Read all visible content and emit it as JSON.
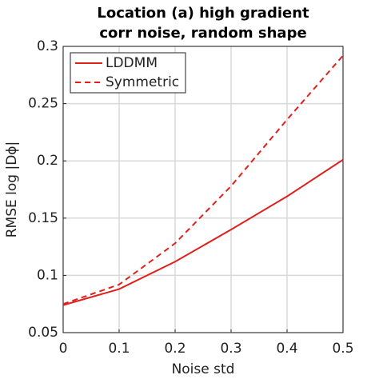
{
  "chart_data": {
    "type": "line",
    "title": [
      "Location (a) high gradient",
      "corr noise, random shape"
    ],
    "x_label": "Noise std",
    "y_label": "RMSE log |Dϕ|",
    "x": [
      0,
      0.1,
      0.2,
      0.3,
      0.4,
      0.5
    ],
    "series": [
      {
        "name": "LDDMM",
        "color": "#e0201b",
        "linestyle": "solid",
        "values": [
          0.074,
          0.088,
          0.112,
          0.14,
          0.169,
          0.201
        ]
      },
      {
        "name": "Symmetric",
        "color": "#e0201b",
        "linestyle": "dashed",
        "values": [
          0.075,
          0.092,
          0.128,
          0.178,
          0.236,
          0.292
        ]
      }
    ],
    "xlim": [
      0,
      0.5
    ],
    "xticks": [
      0,
      0.1,
      0.2,
      0.3,
      0.4,
      0.5
    ],
    "ylim": [
      0.05,
      0.3
    ],
    "yticks": [
      0.05,
      0.1,
      0.15,
      0.2,
      0.25,
      0.3
    ],
    "grid": true,
    "legend": "upper-left"
  }
}
